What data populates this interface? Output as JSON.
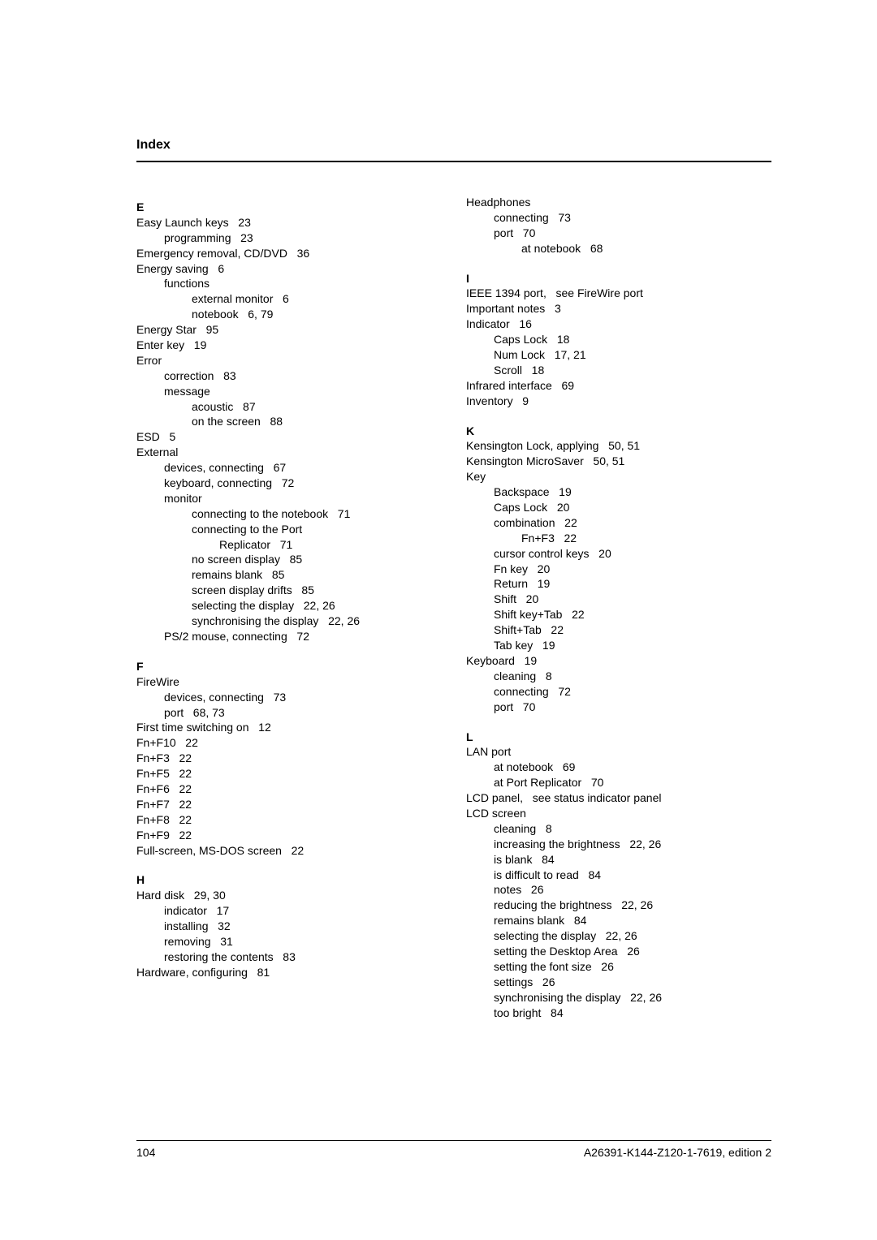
{
  "header": {
    "title": "Index"
  },
  "footer": {
    "page": "104",
    "docinfo": "A26391-K144-Z120-1-7619, edition 2"
  },
  "left": [
    {
      "t": "letter",
      "v": "E"
    },
    {
      "l": 0,
      "v": "Easy Launch keys   23"
    },
    {
      "l": 1,
      "v": "programming   23"
    },
    {
      "l": 0,
      "v": "Emergency removal, CD/DVD   36"
    },
    {
      "l": 0,
      "v": "Energy saving   6"
    },
    {
      "l": 1,
      "v": "functions"
    },
    {
      "l": 2,
      "v": "external monitor   6"
    },
    {
      "l": 2,
      "v": "notebook   6, 79"
    },
    {
      "l": 0,
      "v": "Energy Star   95"
    },
    {
      "l": 0,
      "v": "Enter key   19"
    },
    {
      "l": 0,
      "v": "Error"
    },
    {
      "l": 1,
      "v": "correction   83"
    },
    {
      "l": 1,
      "v": "message"
    },
    {
      "l": 2,
      "v": "acoustic   87"
    },
    {
      "l": 2,
      "v": "on the screen   88"
    },
    {
      "l": 0,
      "v": "ESD   5"
    },
    {
      "l": 0,
      "v": "External"
    },
    {
      "l": 1,
      "v": "devices, connecting   67"
    },
    {
      "l": 1,
      "v": "keyboard, connecting   72"
    },
    {
      "l": 1,
      "v": "monitor"
    },
    {
      "l": 2,
      "v": "connecting to the notebook   71"
    },
    {
      "l": 2,
      "v": "connecting to the Port"
    },
    {
      "l": 3,
      "v": "Replicator   71"
    },
    {
      "l": 2,
      "v": "no screen display   85"
    },
    {
      "l": 2,
      "v": "remains blank   85"
    },
    {
      "l": 2,
      "v": "screen display drifts   85"
    },
    {
      "l": 2,
      "v": "selecting the display   22, 26"
    },
    {
      "l": 2,
      "v": "synchronising the display   22, 26"
    },
    {
      "l": 1,
      "v": "PS/2 mouse, connecting   72"
    },
    {
      "t": "spacer"
    },
    {
      "t": "letter",
      "v": "F"
    },
    {
      "l": 0,
      "v": "FireWire"
    },
    {
      "l": 1,
      "v": "devices, connecting   73"
    },
    {
      "l": 1,
      "v": "port   68, 73"
    },
    {
      "l": 0,
      "v": "First time switching on   12"
    },
    {
      "l": 0,
      "v": "Fn+F10   22"
    },
    {
      "l": 0,
      "v": "Fn+F3   22"
    },
    {
      "l": 0,
      "v": "Fn+F5   22"
    },
    {
      "l": 0,
      "v": "Fn+F6   22"
    },
    {
      "l": 0,
      "v": "Fn+F7   22"
    },
    {
      "l": 0,
      "v": "Fn+F8   22"
    },
    {
      "l": 0,
      "v": "Fn+F9   22"
    },
    {
      "l": 0,
      "v": "Full-screen, MS-DOS screen   22"
    },
    {
      "t": "spacer"
    },
    {
      "t": "letter",
      "v": "H"
    },
    {
      "l": 0,
      "v": "Hard disk   29, 30"
    },
    {
      "l": 1,
      "v": "indicator   17"
    },
    {
      "l": 1,
      "v": "installing   32"
    },
    {
      "l": 1,
      "v": "removing   31"
    },
    {
      "l": 1,
      "v": "restoring the contents   83"
    },
    {
      "l": 0,
      "v": "Hardware, configuring   81"
    }
  ],
  "right": [
    {
      "l": 0,
      "v": "Headphones"
    },
    {
      "l": 1,
      "v": "connecting   73"
    },
    {
      "l": 1,
      "v": "port   70"
    },
    {
      "l": 2,
      "v": "at notebook   68"
    },
    {
      "t": "spacer"
    },
    {
      "t": "letter",
      "v": "I"
    },
    {
      "l": 0,
      "v": "IEEE 1394 port,   see FireWire port"
    },
    {
      "l": 0,
      "v": "Important notes   3"
    },
    {
      "l": 0,
      "v": "Indicator   16"
    },
    {
      "l": 1,
      "v": "Caps Lock   18"
    },
    {
      "l": 1,
      "v": "Num Lock   17, 21"
    },
    {
      "l": 1,
      "v": "Scroll   18"
    },
    {
      "l": 0,
      "v": "Infrared interface   69"
    },
    {
      "l": 0,
      "v": "Inventory   9"
    },
    {
      "t": "spacer"
    },
    {
      "t": "letter",
      "v": "K"
    },
    {
      "l": 0,
      "v": "Kensington Lock, applying   50, 51"
    },
    {
      "l": 0,
      "v": "Kensington MicroSaver   50, 51"
    },
    {
      "l": 0,
      "v": "Key"
    },
    {
      "l": 1,
      "v": "Backspace   19"
    },
    {
      "l": 1,
      "v": "Caps Lock   20"
    },
    {
      "l": 1,
      "v": "combination   22"
    },
    {
      "l": 2,
      "v": "Fn+F3   22"
    },
    {
      "l": 1,
      "v": "cursor control keys   20"
    },
    {
      "l": 1,
      "v": "Fn key   20"
    },
    {
      "l": 1,
      "v": "Return   19"
    },
    {
      "l": 1,
      "v": "Shift   20"
    },
    {
      "l": 1,
      "v": "Shift key+Tab   22"
    },
    {
      "l": 1,
      "v": "Shift+Tab   22"
    },
    {
      "l": 1,
      "v": "Tab key   19"
    },
    {
      "l": 0,
      "v": "Keyboard   19"
    },
    {
      "l": 1,
      "v": "cleaning   8"
    },
    {
      "l": 1,
      "v": "connecting   72"
    },
    {
      "l": 1,
      "v": "port   70"
    },
    {
      "t": "spacer"
    },
    {
      "t": "letter",
      "v": "L"
    },
    {
      "l": 0,
      "v": "LAN port"
    },
    {
      "l": 1,
      "v": "at notebook   69"
    },
    {
      "l": 1,
      "v": "at Port Replicator   70"
    },
    {
      "l": 0,
      "v": "LCD panel,   see status indicator panel"
    },
    {
      "l": 0,
      "v": "LCD screen"
    },
    {
      "l": 1,
      "v": "cleaning   8"
    },
    {
      "l": 1,
      "v": "increasing the brightness   22, 26"
    },
    {
      "l": 1,
      "v": "is blank   84"
    },
    {
      "l": 1,
      "v": "is difficult to read   84"
    },
    {
      "l": 1,
      "v": "notes   26"
    },
    {
      "l": 1,
      "v": "reducing the brightness   22, 26"
    },
    {
      "l": 1,
      "v": "remains blank   84"
    },
    {
      "l": 1,
      "v": "selecting the display   22, 26"
    },
    {
      "l": 1,
      "v": "setting the Desktop Area   26"
    },
    {
      "l": 1,
      "v": "setting the font size   26"
    },
    {
      "l": 1,
      "v": "settings   26"
    },
    {
      "l": 1,
      "v": "synchronising the display   22, 26"
    },
    {
      "l": 1,
      "v": "too bright   84"
    }
  ]
}
